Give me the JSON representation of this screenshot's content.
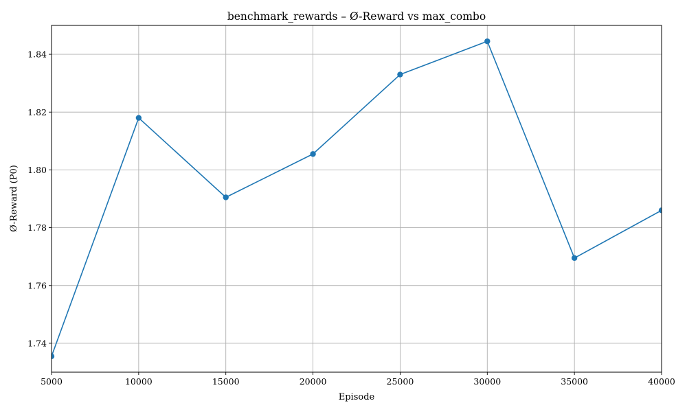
{
  "chart_data": {
    "type": "line",
    "title": "benchmark_rewards – Ø-Reward vs max_combo",
    "xlabel": "Episode",
    "ylabel": "Ø-Reward (P0)",
    "xlim": [
      5000,
      40000
    ],
    "ylim": [
      1.73,
      1.85
    ],
    "x_ticks": [
      5000,
      10000,
      15000,
      20000,
      25000,
      30000,
      35000,
      40000
    ],
    "x_tick_labels": [
      "5000",
      "10000",
      "15000",
      "20000",
      "25000",
      "30000",
      "35000",
      "40000"
    ],
    "y_ticks": [
      1.74,
      1.76,
      1.78,
      1.8,
      1.82,
      1.84
    ],
    "y_tick_labels": [
      "1.74",
      "1.76",
      "1.78",
      "1.80",
      "1.82",
      "1.84"
    ],
    "grid": true,
    "marker": "circle",
    "series": [
      {
        "color": "#1f77b4",
        "x": [
          5000,
          10000,
          15000,
          20000,
          25000,
          30000,
          35000,
          40000
        ],
        "values": [
          1.7355,
          1.818,
          1.7905,
          1.8055,
          1.833,
          1.8445,
          1.7695,
          1.786
        ]
      }
    ]
  }
}
